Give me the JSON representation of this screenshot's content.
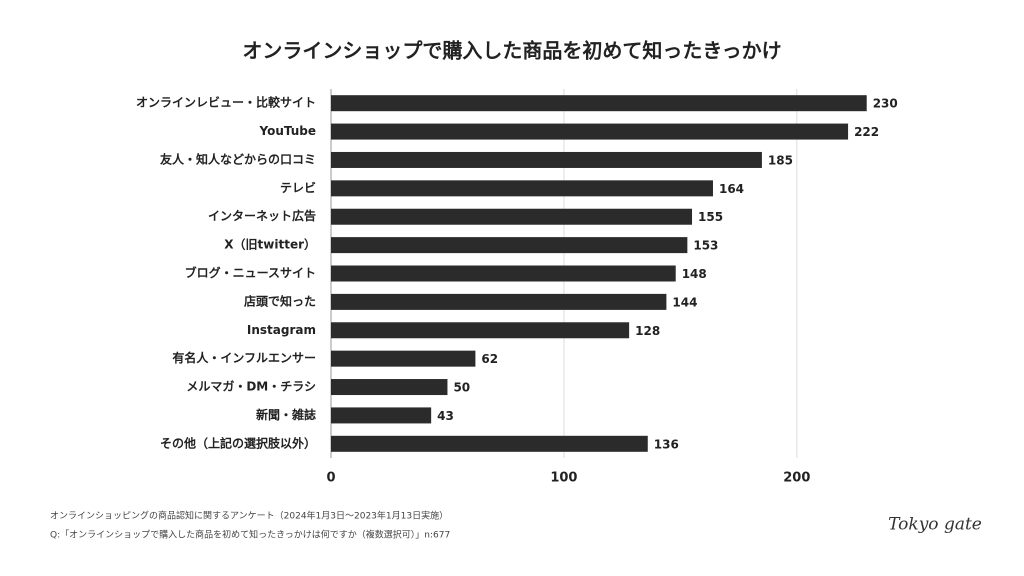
{
  "chart_data": {
    "type": "bar",
    "orientation": "horizontal",
    "title": "オンラインショップで購入した商品を初めて知ったきっかけ",
    "categories": [
      "オンラインレビュー・比較サイト",
      "YouTube",
      "友人・知人などからの口コミ",
      "テレビ",
      "インターネット広告",
      "X（旧twitter）",
      "ブログ・ニュースサイト",
      "店頭で知った",
      "Instagram",
      "有名人・インフルエンサー",
      "メルマガ・DM・チラシ",
      "新聞・雑誌",
      "その他（上記の選択肢以外）"
    ],
    "values": [
      230,
      222,
      185,
      164,
      155,
      153,
      148,
      144,
      128,
      62,
      50,
      43,
      136
    ],
    "color": "#2b2b2b",
    "xlim": [
      0,
      240
    ],
    "xticks": [
      0,
      100,
      200
    ],
    "grid": true
  },
  "footnotes": [
    "オンラインショッピングの商品認知に関するアンケート（2024年1月3日〜2023年1月13日実施）",
    "Q:「オンラインショップで購入した商品を初めて知ったきっかけは何ですか（複数選択可）」n:677"
  ],
  "logo": "Tokyo gate"
}
